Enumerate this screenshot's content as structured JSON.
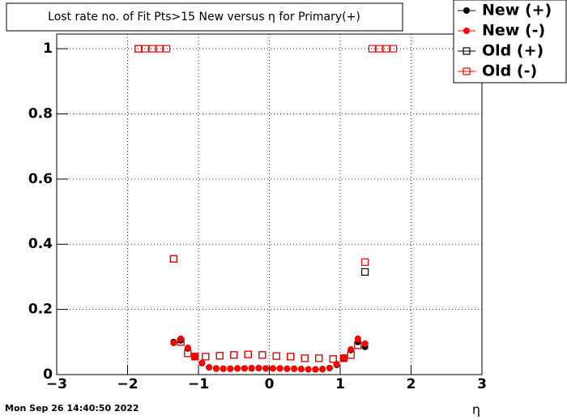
{
  "chart_data": {
    "type": "scatter",
    "title": "Lost rate no. of Fit Pts>15 New versus η for Primary(+)",
    "x_label": "η",
    "timestamp": "Mon Sep 26 14:40:50 2022",
    "xlim": [
      -3,
      3
    ],
    "ylim": [
      0,
      1.045
    ],
    "xticks": [
      {
        "value": -3,
        "label": "−3"
      },
      {
        "value": -2,
        "label": "−2"
      },
      {
        "value": -1,
        "label": "−1"
      },
      0,
      1,
      2,
      3
    ],
    "yticks": [
      0,
      0.2,
      0.4,
      0.6,
      0.8,
      1
    ],
    "grid": true,
    "legend": "top-right",
    "series": [
      {
        "name": "New (+)",
        "color": "#000000",
        "marker": "filled",
        "x": [
          -1.35,
          -1.25,
          -1.15,
          -1.05,
          -0.95,
          -0.85,
          -0.75,
          -0.65,
          -0.55,
          -0.45,
          -0.35,
          -0.25,
          -0.15,
          -0.05,
          0.05,
          0.15,
          0.25,
          0.35,
          0.45,
          0.55,
          0.65,
          0.75,
          0.85,
          0.95,
          1.05,
          1.15,
          1.25,
          1.35
        ],
        "values": [
          0.1,
          0.105,
          0.08,
          0.055,
          0.035,
          0.022,
          0.019,
          0.018,
          0.018,
          0.019,
          0.019,
          0.019,
          0.02,
          0.019,
          0.019,
          0.019,
          0.018,
          0.018,
          0.017,
          0.016,
          0.016,
          0.017,
          0.02,
          0.03,
          0.05,
          0.075,
          0.1,
          0.085
        ]
      },
      {
        "name": "New (-)",
        "color": "#ff0000",
        "marker": "filled",
        "x": [
          -1.35,
          -1.25,
          -1.15,
          -1.05,
          -0.95,
          -0.85,
          -0.75,
          -0.65,
          -0.55,
          -0.45,
          -0.35,
          -0.25,
          -0.15,
          -0.05,
          0.05,
          0.15,
          0.25,
          0.35,
          0.45,
          0.55,
          0.65,
          0.75,
          0.85,
          0.95,
          1.05,
          1.15,
          1.25,
          1.35
        ],
        "values": [
          0.097,
          0.11,
          0.082,
          0.057,
          0.036,
          0.022,
          0.018,
          0.018,
          0.018,
          0.019,
          0.019,
          0.02,
          0.02,
          0.019,
          0.019,
          0.019,
          0.018,
          0.018,
          0.017,
          0.016,
          0.016,
          0.016,
          0.02,
          0.032,
          0.052,
          0.077,
          0.11,
          0.095
        ]
      },
      {
        "name": "Old (+)",
        "color": "#000000",
        "marker": "open",
        "x": [
          -1.85,
          -1.35,
          -1.25,
          -1.15,
          -1.05,
          -0.9,
          -0.7,
          -0.5,
          -0.3,
          -0.1,
          0.1,
          0.3,
          0.5,
          0.7,
          0.9,
          1.05,
          1.15,
          1.25,
          1.35
        ],
        "values": [
          1,
          0.355,
          0.1,
          0.065,
          0.055,
          0.055,
          0.058,
          0.06,
          0.062,
          0.06,
          0.057,
          0.055,
          0.05,
          0.05,
          0.048,
          0.05,
          0.06,
          0.09,
          0.315
        ]
      },
      {
        "name": "Old (-)",
        "color": "#ff0000",
        "marker": "open",
        "x": [
          -1.85,
          -1.75,
          -1.65,
          -1.55,
          -1.45,
          -1.35,
          -1.25,
          -1.15,
          -1.05,
          -0.9,
          -0.7,
          -0.5,
          -0.3,
          -0.1,
          0.1,
          0.3,
          0.5,
          0.7,
          0.9,
          1.05,
          1.15,
          1.25,
          1.35,
          1.45,
          1.55,
          1.65,
          1.75
        ],
        "values": [
          1,
          1,
          1,
          1,
          1,
          0.355,
          0.1,
          0.065,
          0.055,
          0.055,
          0.058,
          0.06,
          0.062,
          0.06,
          0.057,
          0.055,
          0.05,
          0.05,
          0.048,
          0.05,
          0.06,
          0.09,
          0.345,
          1,
          1,
          1,
          1
        ]
      }
    ]
  }
}
